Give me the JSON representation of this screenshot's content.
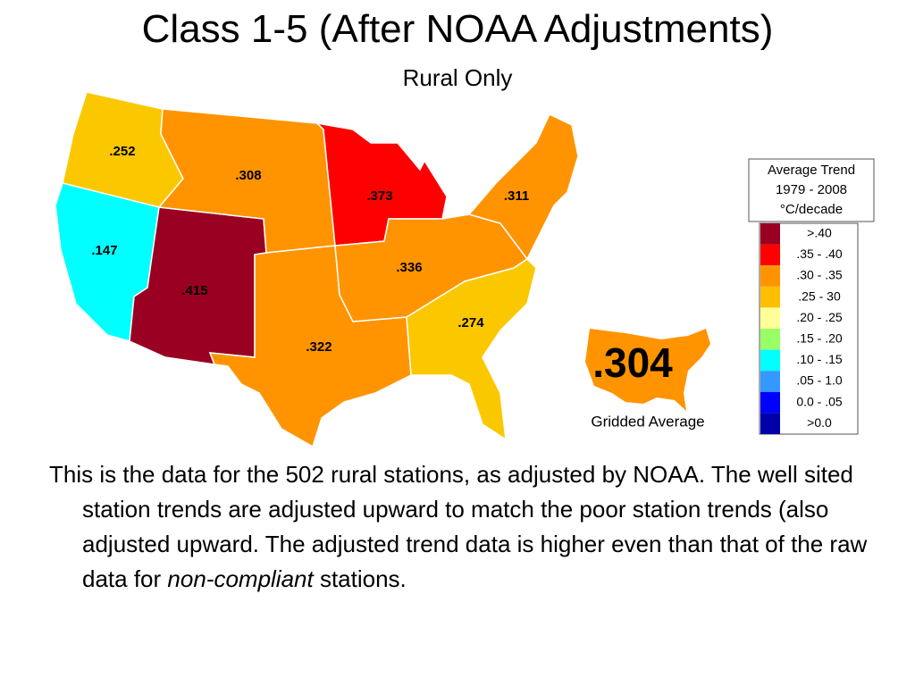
{
  "header": {
    "title": "Class 1-5 (After NOAA Adjustments)",
    "subtitle": "Rural Only"
  },
  "map": {
    "regions": [
      {
        "label": ".252",
        "color": "#fbc800"
      },
      {
        "label": ".147",
        "color": "#00ffff"
      },
      {
        "label": ".415",
        "color": "#990022"
      },
      {
        "label": ".308",
        "color": "#ff9400"
      },
      {
        "label": ".373",
        "color": "#ff0000"
      },
      {
        "label": ".322",
        "color": "#ff9400"
      },
      {
        "label": ".336",
        "color": "#ff9400"
      },
      {
        "label": ".311",
        "color": "#ff9400"
      },
      {
        "label": ".274",
        "color": "#fbc800"
      }
    ],
    "inset": {
      "label": ".304",
      "color": "#ff9400",
      "caption": "Gridded Average"
    }
  },
  "legend": {
    "title_lines": [
      "Average Trend",
      "1979 - 2008",
      "°C/decade"
    ],
    "entries": [
      {
        "label": ">.40",
        "color": "#990022"
      },
      {
        "label": ".35 - .40",
        "color": "#ff0000"
      },
      {
        "label": ".30 - .35",
        "color": "#ff9400"
      },
      {
        "label": ".25 - 30",
        "color": "#ffbf00"
      },
      {
        "label": ".20 - .25",
        "color": "#ffff99"
      },
      {
        "label": ".15 - .20",
        "color": "#99ff66"
      },
      {
        "label": ".10 - .15",
        "color": "#00ffff"
      },
      {
        "label": ".05 - 1.0",
        "color": "#3399ff"
      },
      {
        "label": "0.0 - .05",
        "color": "#0000ff"
      },
      {
        "label": ">0.0",
        "color": "#0000aa"
      }
    ]
  },
  "body": {
    "text_before": "This is the data for the 502 rural stations, as adjusted by NOAA. The well sited station trends are adjusted upward to match the poor station trends (also adjusted upward. The adjusted trend data is higher even than that of the raw data for ",
    "emphasis": "non-compliant",
    "text_after": " stations."
  }
}
